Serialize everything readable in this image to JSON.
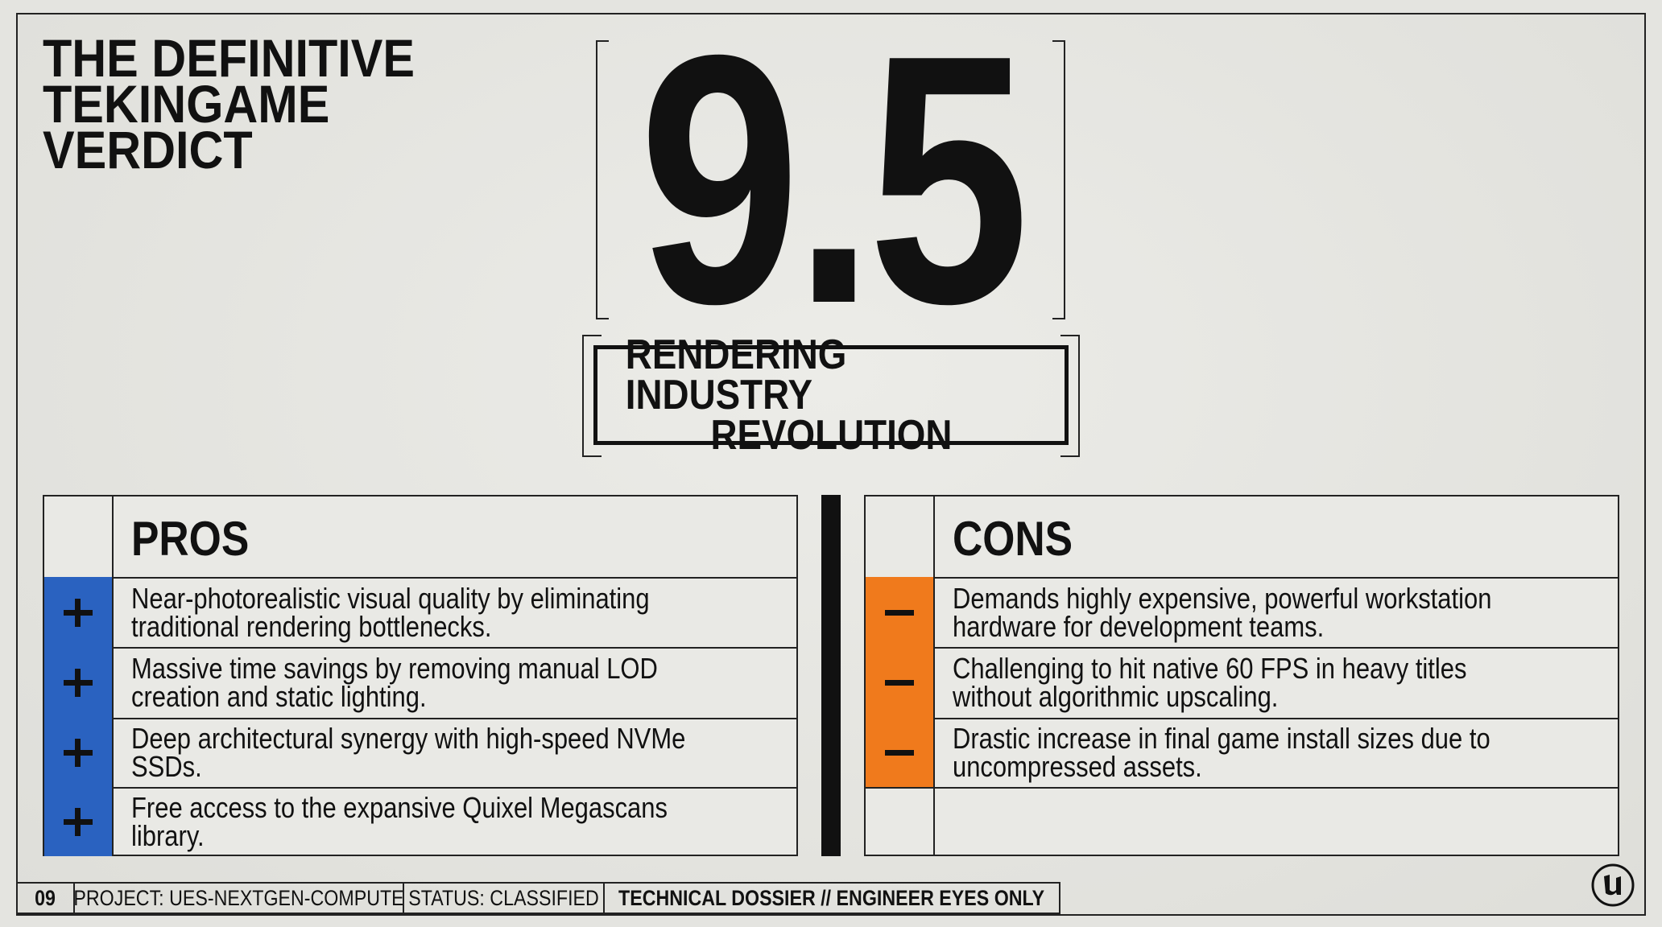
{
  "header": {
    "title_lines": [
      "THE DEFINITIVE",
      "TEKINGAME",
      "VERDICT"
    ]
  },
  "score": "9.5",
  "subtitle_lines": [
    "RENDERING INDUSTRY",
    "REVOLUTION"
  ],
  "pros": {
    "heading": "PROS",
    "items": [
      "Near-photorealistic visual quality by eliminating traditional rendering bottlenecks.",
      "Massive time savings by removing manual LOD creation and static lighting.",
      "Deep architectural synergy with high-speed NVMe SSDs.",
      "Free access to the expansive Quixel Megascans library."
    ]
  },
  "cons": {
    "heading": "CONS",
    "items": [
      "Demands highly expensive, powerful workstation hardware for development teams.",
      "Challenging to hit native 60 FPS in heavy titles without algorithmic upscaling.",
      "Drastic increase in final game install sizes due to uncompressed assets."
    ]
  },
  "footer": {
    "page": "09",
    "project": "PROJECT: UES-NEXTGEN-COMPUTE",
    "status": "STATUS: CLASSIFIED",
    "note": "TECHNICAL DOSSIER // ENGINEER EYES ONLY"
  }
}
